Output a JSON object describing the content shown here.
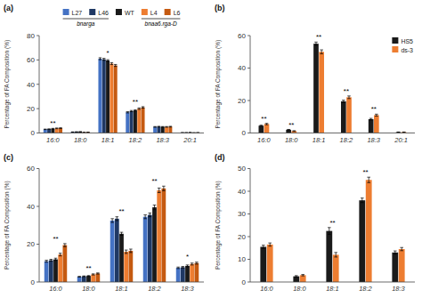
{
  "chart_data": [
    {
      "type": "bar",
      "title": "(a)",
      "ylabel": "Percentage of FA Composition (%)",
      "categories": [
        "16:0",
        "18:0",
        "18:1",
        "18:2",
        "18:3",
        "20:1"
      ],
      "series": [
        {
          "name": "L27",
          "color": "#4472C4",
          "values": [
            3.0,
            0.8,
            61.0,
            17.0,
            5.0,
            0.3
          ],
          "errors": [
            0.2,
            0.1,
            0.8,
            0.5,
            0.3,
            0.05
          ]
        },
        {
          "name": "L46",
          "color": "#1F3864",
          "values": [
            3.2,
            0.9,
            60.5,
            18.0,
            5.2,
            0.3
          ],
          "errors": [
            0.2,
            0.1,
            0.8,
            0.5,
            0.3,
            0.05
          ]
        },
        {
          "name": "WT",
          "color": "#1a1a1a",
          "values": [
            3.5,
            1.0,
            59.5,
            18.5,
            5.0,
            0.4
          ],
          "errors": [
            0.3,
            0.1,
            0.7,
            0.5,
            0.3,
            0.05
          ]
        },
        {
          "name": "L4",
          "color": "#ED7D31",
          "values": [
            3.8,
            0.5,
            57.0,
            20.0,
            5.0,
            0.2
          ],
          "errors": [
            0.3,
            0.1,
            0.8,
            0.6,
            0.3,
            0.05
          ]
        },
        {
          "name": "L6",
          "color": "#C55A11",
          "values": [
            4.0,
            0.6,
            55.5,
            21.0,
            5.2,
            0.3
          ],
          "errors": [
            0.3,
            0.1,
            0.8,
            0.6,
            0.3,
            0.05
          ]
        }
      ],
      "ylim": [
        0,
        80
      ],
      "yticks": [
        0,
        20,
        40,
        60,
        80
      ],
      "grid": false,
      "legend": "top",
      "annotations": [
        {
          "text": "**",
          "category": "16:0"
        },
        {
          "text": "*",
          "category": "18:1"
        },
        {
          "text": "**",
          "category": "18:2"
        },
        {
          "text": "bnarga",
          "series": [
            "L27",
            "L46"
          ]
        },
        {
          "text": "bnaa6.rga-D",
          "series": [
            "L4",
            "L6"
          ]
        }
      ]
    },
    {
      "type": "bar",
      "title": "(b)",
      "ylabel": "Percentage of FA Composition (%)",
      "categories": [
        "16:0",
        "18:0",
        "18:1",
        "18:2",
        "18:3",
        "20:1"
      ],
      "series": [
        {
          "name": "HS5",
          "color": "#1a1a1a",
          "values": [
            4.5,
            2.0,
            55.0,
            19.5,
            8.5,
            0.5
          ],
          "errors": [
            0.3,
            0.2,
            1.0,
            0.7,
            0.5,
            0.1
          ]
        },
        {
          "name": "ds-3",
          "color": "#ED7D31",
          "values": [
            5.5,
            1.2,
            50.0,
            22.0,
            11.0,
            0.5
          ],
          "errors": [
            0.4,
            0.2,
            1.2,
            0.8,
            0.6,
            0.1
          ]
        }
      ],
      "ylim": [
        0,
        60
      ],
      "yticks": [
        0,
        20,
        40,
        60
      ],
      "grid": false,
      "legend": "upper right",
      "annotations": [
        {
          "text": "**",
          "category": "16:0"
        },
        {
          "text": "**",
          "category": "18:0"
        },
        {
          "text": "**",
          "category": "18:1"
        },
        {
          "text": "**",
          "category": "18:2"
        },
        {
          "text": "**",
          "category": "18:3"
        }
      ]
    },
    {
      "type": "bar",
      "title": "(c)",
      "ylabel": "Percentage of FA Composition (%)",
      "categories": [
        "16:0",
        "18:0",
        "18:1",
        "18:2",
        "18:3"
      ],
      "series": [
        {
          "name": "L27",
          "color": "#4472C4",
          "values": [
            11.0,
            2.8,
            32.5,
            34.5,
            7.5
          ],
          "errors": [
            0.5,
            0.2,
            1.0,
            1.0,
            0.4
          ]
        },
        {
          "name": "L46",
          "color": "#1F3864",
          "values": [
            11.5,
            3.0,
            33.5,
            35.5,
            7.8
          ],
          "errors": [
            0.5,
            0.2,
            1.0,
            1.0,
            0.4
          ]
        },
        {
          "name": "WT",
          "color": "#1a1a1a",
          "values": [
            12.0,
            3.2,
            25.5,
            39.5,
            8.5
          ],
          "errors": [
            0.6,
            0.2,
            0.8,
            1.2,
            0.5
          ]
        },
        {
          "name": "L4",
          "color": "#ED7D31",
          "values": [
            14.5,
            4.0,
            16.0,
            48.5,
            9.5
          ],
          "errors": [
            0.7,
            0.3,
            0.9,
            1.2,
            0.5
          ]
        },
        {
          "name": "L6",
          "color": "#C55A11",
          "values": [
            19.5,
            4.5,
            16.5,
            49.5,
            10.0
          ],
          "errors": [
            0.8,
            0.3,
            0.9,
            1.2,
            0.5
          ]
        }
      ],
      "ylim": [
        0,
        60
      ],
      "yticks": [
        0,
        20,
        40,
        60
      ],
      "grid": false,
      "legend": false,
      "annotations": [
        {
          "text": "**",
          "category": "16:0"
        },
        {
          "text": "**",
          "category": "18:0"
        },
        {
          "text": "**",
          "category": "18:1"
        },
        {
          "text": "**",
          "category": "18:2"
        },
        {
          "text": "*",
          "category": "18:3"
        }
      ]
    },
    {
      "type": "bar",
      "title": "(d)",
      "ylabel": "Percentage of FA Composition (%)",
      "categories": [
        "16:0",
        "18:0",
        "18:1",
        "18:2",
        "18:3"
      ],
      "series": [
        {
          "name": "HS5",
          "color": "#1a1a1a",
          "values": [
            15.5,
            2.5,
            22.5,
            36.0,
            13.0
          ],
          "errors": [
            0.7,
            0.3,
            1.5,
            1.0,
            0.7
          ]
        },
        {
          "name": "ds-3",
          "color": "#ED7D31",
          "values": [
            16.5,
            3.0,
            12.0,
            45.0,
            14.5
          ],
          "errors": [
            0.7,
            0.3,
            1.0,
            1.2,
            0.7
          ]
        }
      ],
      "ylim": [
        0,
        50
      ],
      "yticks": [
        0,
        10,
        20,
        30,
        40,
        50
      ],
      "grid": false,
      "legend": false,
      "annotations": [
        {
          "text": "**",
          "category": "18:1"
        },
        {
          "text": "**",
          "category": "18:2"
        }
      ]
    }
  ]
}
